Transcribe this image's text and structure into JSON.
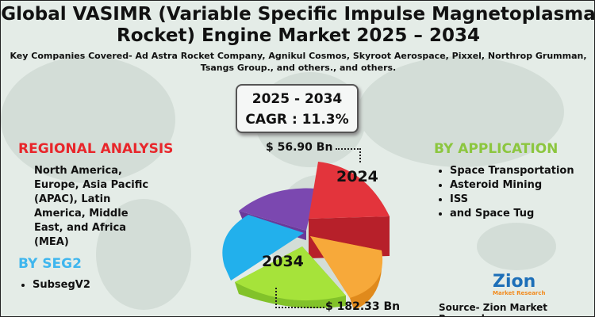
{
  "title": "Global VASIMR (Variable Specific Impulse Magnetoplasma Rocket) Engine Market 2025 – 2034",
  "subtitle": "Key Companies Covered- Ad Astra Rocket Company, Agnikul Cosmos, Skyroot Aerospace, Pixxel, Northrop Grumman, Tsangs Group., and others., and others.",
  "cagr": {
    "period": "2025 - 2034",
    "value": "CAGR : 11.3%"
  },
  "values": {
    "v2024": "$ 56.90 Bn",
    "v2034": "$ 182.33 Bn",
    "label2024": "2024",
    "label2034": "2034"
  },
  "regional": {
    "heading": "REGIONAL ANALYSIS",
    "text": "North America, Europe, Asia Pacific (APAC), Latin America, Middle East, and Africa (MEA)",
    "color": "#e8262b"
  },
  "seg2": {
    "heading": "BY SEG2",
    "items": [
      "SubsegV2"
    ],
    "color": "#3fb6ee"
  },
  "application": {
    "heading": "BY APPLICATION",
    "items": [
      "Space Transportation",
      "Asteroid Mining",
      "ISS",
      "and Space Tug"
    ],
    "color": "#8cc63f"
  },
  "pie_colors": [
    "#e3343c",
    "#f7a93a",
    "#a6e33a",
    "#22b0ec",
    "#7b48b0"
  ],
  "logo": {
    "text": "Zion Market Research"
  },
  "source": "Source- Zion Market Research"
}
